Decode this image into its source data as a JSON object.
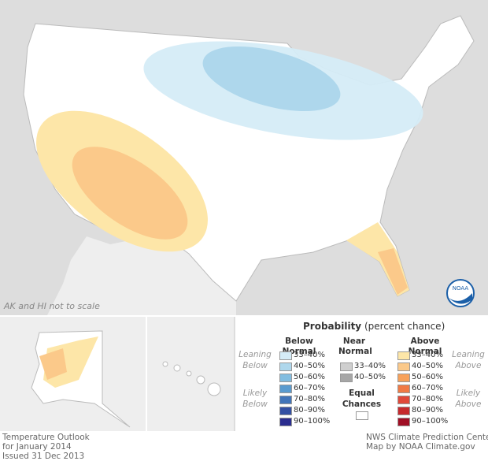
{
  "map": {
    "note": "AK and HI not to scale",
    "logo": "NOAA"
  },
  "legend": {
    "title": "Probability",
    "subtitle": "(percent chance)",
    "below": {
      "heading": "Below Normal",
      "leaning": "Leaning Below",
      "likely": "Likely Below",
      "bins": [
        {
          "label": "33–40%",
          "color": "#d5ecf7"
        },
        {
          "label": "40–50%",
          "color": "#aed7ec"
        },
        {
          "label": "50–60%",
          "color": "#82bde0"
        },
        {
          "label": "60–70%",
          "color": "#5a9bcf"
        },
        {
          "label": "70–80%",
          "color": "#4275b9"
        },
        {
          "label": "80–90%",
          "color": "#3350a3"
        },
        {
          "label": "90–100%",
          "color": "#2a2d8f"
        }
      ]
    },
    "near": {
      "heading": "Near Normal",
      "bins": [
        {
          "label": "33–40%",
          "color": "#cfcfcf"
        },
        {
          "label": "40–50%",
          "color": "#a6a6a6"
        }
      ]
    },
    "equal": {
      "heading": "Equal Chances",
      "color": "#ffffff"
    },
    "above": {
      "heading": "Above Normal",
      "leaning": "Leaning Above",
      "likely": "Likely Above",
      "bins": [
        {
          "label": "33–40%",
          "color": "#fde6a8"
        },
        {
          "label": "40–50%",
          "color": "#fbc98a"
        },
        {
          "label": "50–60%",
          "color": "#f7a15a"
        },
        {
          "label": "60–70%",
          "color": "#f07a45"
        },
        {
          "label": "70–80%",
          "color": "#e0493a"
        },
        {
          "label": "80–90%",
          "color": "#c62a2d"
        },
        {
          "label": "90–100%",
          "color": "#a00f25"
        }
      ]
    }
  },
  "footer": {
    "left": [
      "Temperature Outlook",
      "for January 2014",
      "Issued 31 Dec 2013"
    ],
    "right": [
      "NWS Climate Prediction Center",
      "Map by NOAA Climate.gov"
    ]
  }
}
